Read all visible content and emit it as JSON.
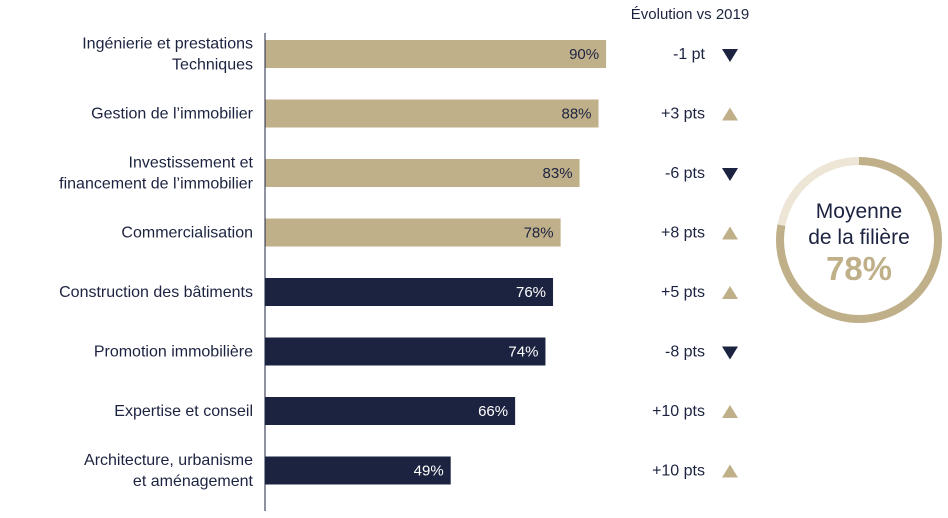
{
  "colors": {
    "gold": "#c0b08a",
    "navy": "#1c2340",
    "axis": "#1c2340"
  },
  "evolution_header": "Évolution vs 2019",
  "average": {
    "line1": "Moyenne",
    "line2": "de la filière",
    "value": "78%",
    "fraction": 0.78
  },
  "chart_data": {
    "type": "bar",
    "orientation": "horizontal",
    "categories": [
      [
        "Ingénierie et prestations",
        "Techniques"
      ],
      [
        "Gestion de l’immobilier"
      ],
      [
        "Investissement et",
        "financement de l’immobilier"
      ],
      [
        "Commercialisation"
      ],
      [
        "Construction des bâtiments"
      ],
      [
        "Promotion immobilière"
      ],
      [
        "Expertise et conseil"
      ],
      [
        "Architecture, urbanisme",
        "et aménagement"
      ]
    ],
    "values": [
      90,
      88,
      83,
      78,
      76,
      74,
      66,
      49
    ],
    "value_labels": [
      "90%",
      "88%",
      "83%",
      "78%",
      "76%",
      "74%",
      "66%",
      "49%"
    ],
    "bar_colors": [
      "gold",
      "gold",
      "gold",
      "gold",
      "navy",
      "navy",
      "navy",
      "navy"
    ],
    "evolution": [
      {
        "text": "-1 pt",
        "direction": "down"
      },
      {
        "text": "+3 pts",
        "direction": "up"
      },
      {
        "text": "-6 pts",
        "direction": "down"
      },
      {
        "text": "+8 pts",
        "direction": "up"
      },
      {
        "text": "+5 pts",
        "direction": "up"
      },
      {
        "text": "-8 pts",
        "direction": "down"
      },
      {
        "text": "+10 pts",
        "direction": "up"
      },
      {
        "text": "+10 pts",
        "direction": "up"
      }
    ],
    "xlim": [
      0,
      100
    ],
    "grid": false,
    "legend": "none"
  }
}
